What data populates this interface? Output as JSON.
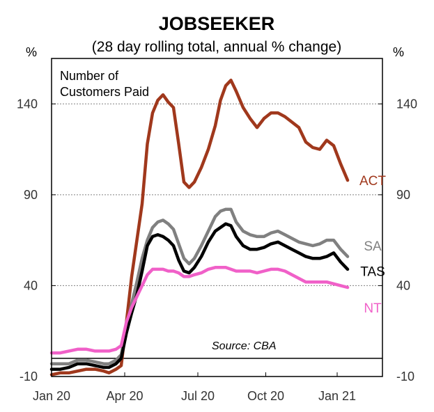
{
  "chart_data": {
    "type": "line",
    "title": "JOBSEEKER",
    "subtitle": "(28 day rolling total, annual % change)",
    "y_unit_left": "%",
    "y_unit_right": "%",
    "annotation": [
      "Number of",
      "Customers Paid"
    ],
    "source": "Source: CBA",
    "ylim": [
      -10,
      165
    ],
    "yticks": [
      -10,
      40,
      90,
      140
    ],
    "xlim": [
      0,
      19
    ],
    "xticks": [
      {
        "label": "Jan 20",
        "x": 0
      },
      {
        "label": "Apr 20",
        "x": 4.2
      },
      {
        "label": "Jul 20",
        "x": 8.4
      },
      {
        "label": "Oct 20",
        "x": 12.3
      },
      {
        "label": "Jan 21",
        "x": 16.4
      }
    ],
    "baseline": 0,
    "gridlines": [
      40,
      90,
      140
    ],
    "colors": {
      "ACT": "#a0381c",
      "SA": "#808080",
      "TAS": "#000000",
      "NT": "#f060c8",
      "grid": "#808080",
      "axis": "#000000"
    },
    "series": [
      {
        "name": "ACT",
        "label_y": 98,
        "points": [
          [
            0,
            -9
          ],
          [
            0.5,
            -8
          ],
          [
            1,
            -8
          ],
          [
            1.5,
            -7
          ],
          [
            2,
            -6
          ],
          [
            2.5,
            -6
          ],
          [
            3,
            -7
          ],
          [
            3.3,
            -8
          ],
          [
            3.7,
            -6
          ],
          [
            4,
            -4
          ],
          [
            4.3,
            20
          ],
          [
            4.6,
            45
          ],
          [
            4.9,
            65
          ],
          [
            5.2,
            85
          ],
          [
            5.5,
            118
          ],
          [
            5.8,
            135
          ],
          [
            6.1,
            142
          ],
          [
            6.4,
            145
          ],
          [
            6.7,
            141
          ],
          [
            7,
            138
          ],
          [
            7.3,
            118
          ],
          [
            7.6,
            97
          ],
          [
            7.9,
            94
          ],
          [
            8.2,
            97
          ],
          [
            8.6,
            105
          ],
          [
            9,
            115
          ],
          [
            9.4,
            128
          ],
          [
            9.7,
            142
          ],
          [
            10,
            150
          ],
          [
            10.3,
            153
          ],
          [
            10.6,
            147
          ],
          [
            11,
            138
          ],
          [
            11.4,
            132
          ],
          [
            11.8,
            127
          ],
          [
            12.2,
            132
          ],
          [
            12.6,
            135
          ],
          [
            13,
            135
          ],
          [
            13.4,
            133
          ],
          [
            13.8,
            130
          ],
          [
            14.2,
            127
          ],
          [
            14.6,
            119
          ],
          [
            15,
            116
          ],
          [
            15.4,
            115
          ],
          [
            15.8,
            120
          ],
          [
            16.2,
            117
          ],
          [
            16.6,
            107
          ],
          [
            17,
            98
          ]
        ]
      },
      {
        "name": "SA",
        "label_y": 62,
        "points": [
          [
            0,
            -3
          ],
          [
            0.5,
            -3
          ],
          [
            1,
            -3
          ],
          [
            1.5,
            -1
          ],
          [
            2,
            -1
          ],
          [
            2.5,
            -2
          ],
          [
            3,
            -3
          ],
          [
            3.3,
            -3
          ],
          [
            3.7,
            -1
          ],
          [
            4,
            2
          ],
          [
            4.3,
            17
          ],
          [
            4.6,
            30
          ],
          [
            4.9,
            42
          ],
          [
            5.2,
            55
          ],
          [
            5.5,
            65
          ],
          [
            5.8,
            72
          ],
          [
            6.1,
            75
          ],
          [
            6.4,
            76
          ],
          [
            6.7,
            74
          ],
          [
            7,
            71
          ],
          [
            7.3,
            63
          ],
          [
            7.6,
            55
          ],
          [
            7.9,
            52
          ],
          [
            8.2,
            55
          ],
          [
            8.6,
            62
          ],
          [
            9,
            70
          ],
          [
            9.4,
            78
          ],
          [
            9.7,
            81
          ],
          [
            10,
            82
          ],
          [
            10.3,
            82
          ],
          [
            10.6,
            75
          ],
          [
            11,
            70
          ],
          [
            11.4,
            68
          ],
          [
            11.8,
            67
          ],
          [
            12.2,
            67
          ],
          [
            12.6,
            69
          ],
          [
            13,
            70
          ],
          [
            13.4,
            68
          ],
          [
            13.8,
            66
          ],
          [
            14.2,
            64
          ],
          [
            14.6,
            63
          ],
          [
            15,
            62
          ],
          [
            15.4,
            63
          ],
          [
            15.8,
            65
          ],
          [
            16.2,
            65
          ],
          [
            16.6,
            60
          ],
          [
            17,
            56
          ]
        ]
      },
      {
        "name": "TAS",
        "label_y": 48,
        "points": [
          [
            0,
            -6
          ],
          [
            0.5,
            -6
          ],
          [
            1,
            -5
          ],
          [
            1.5,
            -3
          ],
          [
            2,
            -3
          ],
          [
            2.5,
            -4
          ],
          [
            3,
            -5
          ],
          [
            3.3,
            -5
          ],
          [
            3.7,
            -3
          ],
          [
            4,
            0
          ],
          [
            4.3,
            14
          ],
          [
            4.6,
            25
          ],
          [
            4.9,
            35
          ],
          [
            5.2,
            48
          ],
          [
            5.5,
            62
          ],
          [
            5.8,
            67
          ],
          [
            6.1,
            68
          ],
          [
            6.4,
            67
          ],
          [
            6.7,
            65
          ],
          [
            7,
            62
          ],
          [
            7.3,
            54
          ],
          [
            7.6,
            48
          ],
          [
            7.9,
            47
          ],
          [
            8.2,
            50
          ],
          [
            8.6,
            56
          ],
          [
            9,
            64
          ],
          [
            9.4,
            70
          ],
          [
            9.7,
            72
          ],
          [
            10,
            74
          ],
          [
            10.3,
            73
          ],
          [
            10.6,
            67
          ],
          [
            11,
            62
          ],
          [
            11.4,
            60
          ],
          [
            11.8,
            60
          ],
          [
            12.2,
            61
          ],
          [
            12.6,
            63
          ],
          [
            13,
            64
          ],
          [
            13.4,
            62
          ],
          [
            13.8,
            60
          ],
          [
            14.2,
            58
          ],
          [
            14.6,
            56
          ],
          [
            15,
            55
          ],
          [
            15.4,
            55
          ],
          [
            15.8,
            56
          ],
          [
            16.2,
            58
          ],
          [
            16.6,
            53
          ],
          [
            17,
            49
          ]
        ]
      },
      {
        "name": "NT",
        "label_y": 28,
        "points": [
          [
            0,
            3
          ],
          [
            0.5,
            3
          ],
          [
            1,
            4
          ],
          [
            1.5,
            5
          ],
          [
            2,
            5
          ],
          [
            2.5,
            4
          ],
          [
            3,
            4
          ],
          [
            3.3,
            4
          ],
          [
            3.7,
            5
          ],
          [
            4,
            7
          ],
          [
            4.3,
            20
          ],
          [
            4.6,
            28
          ],
          [
            4.9,
            34
          ],
          [
            5.2,
            40
          ],
          [
            5.5,
            46
          ],
          [
            5.8,
            49
          ],
          [
            6.1,
            49
          ],
          [
            6.4,
            49
          ],
          [
            6.7,
            48
          ],
          [
            7,
            48
          ],
          [
            7.3,
            47
          ],
          [
            7.6,
            45
          ],
          [
            7.9,
            45
          ],
          [
            8.2,
            46
          ],
          [
            8.6,
            47
          ],
          [
            9,
            49
          ],
          [
            9.4,
            50
          ],
          [
            9.7,
            50
          ],
          [
            10,
            50
          ],
          [
            10.3,
            49
          ],
          [
            10.6,
            48
          ],
          [
            11,
            48
          ],
          [
            11.4,
            48
          ],
          [
            11.8,
            47
          ],
          [
            12.2,
            48
          ],
          [
            12.6,
            49
          ],
          [
            13,
            49
          ],
          [
            13.4,
            48
          ],
          [
            13.8,
            46
          ],
          [
            14.2,
            44
          ],
          [
            14.6,
            42
          ],
          [
            15,
            42
          ],
          [
            15.4,
            42
          ],
          [
            15.8,
            42
          ],
          [
            16.2,
            41
          ],
          [
            16.6,
            40
          ],
          [
            17,
            39
          ]
        ]
      }
    ]
  }
}
